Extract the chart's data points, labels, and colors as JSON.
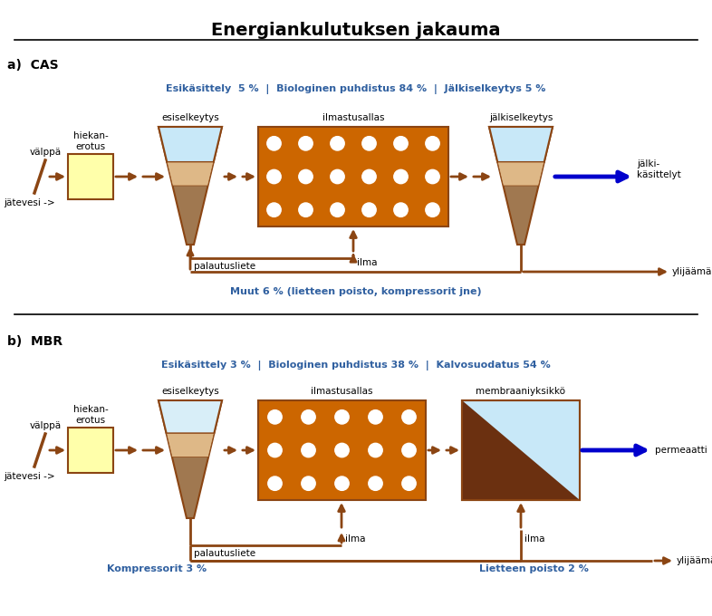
{
  "title": "Energiankulutuksen jakauma",
  "bg_color": "#ffffff",
  "brown": "#8B4513",
  "dark_brown": "#5C2A00",
  "orange_fill": "#CC6600",
  "light_orange": "#DEB887",
  "tan": "#C8A070",
  "tan2": "#A07850",
  "yellow_fill": "#FFFFAA",
  "blue_fill": "#C8E8F8",
  "blue_mid": "#B0C8D8",
  "blue_arrow": "#0000CC",
  "text_blue": "#3060A0",
  "cas_label": "a)  CAS",
  "mbr_label": "b)  MBR",
  "cas_header": "Esikäsittely  5 %  |  Biologinen puhdistus 84 %  |  Jälkiselkeytys 5 %",
  "mbr_header": "Esikäsittely 3 %  |  Biologinen puhdistus 38 %  |  Kalvosuodatus 54 %",
  "cas_footer": "Muut 6 % (lietteen poisto, kompressorit jne)",
  "mbr_footer_left": "Kompressorit 3 %",
  "mbr_footer_right": "Lietteen poisto 2 %"
}
